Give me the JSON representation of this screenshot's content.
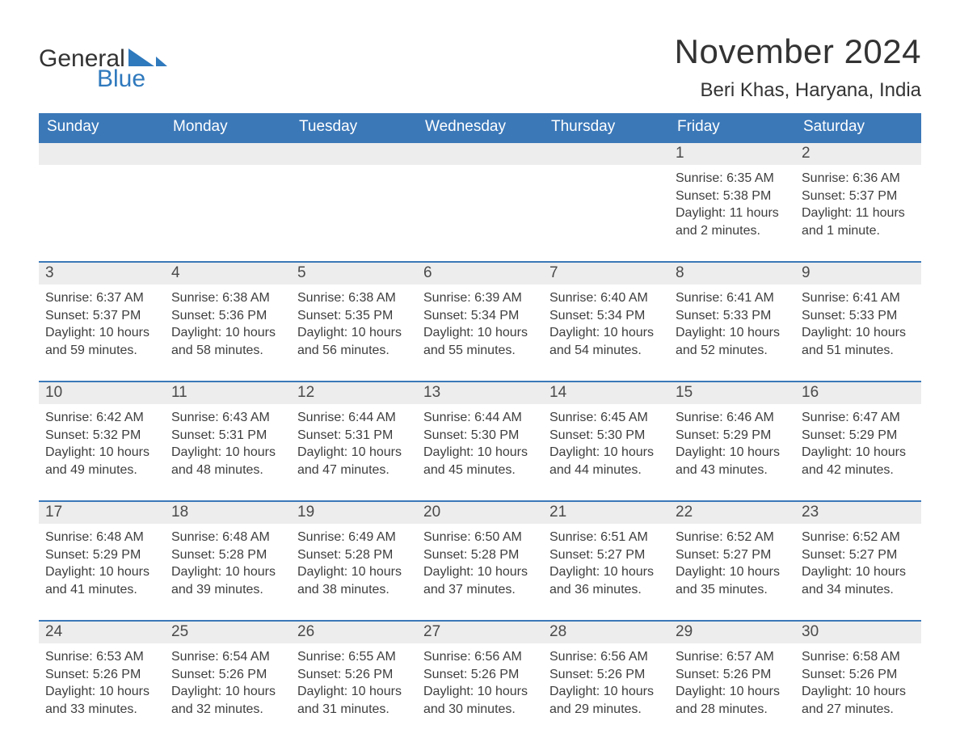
{
  "brand": {
    "word1": "General",
    "word2": "Blue",
    "text_color": "#333333",
    "accent_color": "#2f79bd",
    "sail_color": "#2f79bd"
  },
  "title": {
    "month_year": "November 2024",
    "location": "Beri Khas, Haryana, India",
    "title_fontsize": 42,
    "location_fontsize": 24,
    "title_color": "#333333"
  },
  "calendar": {
    "type": "table",
    "header_bg": "#3b78b8",
    "header_text_color": "#ffffff",
    "day_topline_color": "#3b78b8",
    "day_bar_bg": "#ededed",
    "day_bar_text_color": "#4a4a4a",
    "body_text_color": "#3e3e3e",
    "background_color": "#ffffff",
    "header_fontsize": 19,
    "daynum_fontsize": 19,
    "body_fontsize": 16,
    "columns": [
      "Sunday",
      "Monday",
      "Tuesday",
      "Wednesday",
      "Thursday",
      "Friday",
      "Saturday"
    ],
    "weeks": [
      [
        null,
        null,
        null,
        null,
        null,
        {
          "day": "1",
          "sunrise": "Sunrise: 6:35 AM",
          "sunset": "Sunset: 5:38 PM",
          "daylight": "Daylight: 11 hours and 2 minutes."
        },
        {
          "day": "2",
          "sunrise": "Sunrise: 6:36 AM",
          "sunset": "Sunset: 5:37 PM",
          "daylight": "Daylight: 11 hours and 1 minute."
        }
      ],
      [
        {
          "day": "3",
          "sunrise": "Sunrise: 6:37 AM",
          "sunset": "Sunset: 5:37 PM",
          "daylight": "Daylight: 10 hours and 59 minutes."
        },
        {
          "day": "4",
          "sunrise": "Sunrise: 6:38 AM",
          "sunset": "Sunset: 5:36 PM",
          "daylight": "Daylight: 10 hours and 58 minutes."
        },
        {
          "day": "5",
          "sunrise": "Sunrise: 6:38 AM",
          "sunset": "Sunset: 5:35 PM",
          "daylight": "Daylight: 10 hours and 56 minutes."
        },
        {
          "day": "6",
          "sunrise": "Sunrise: 6:39 AM",
          "sunset": "Sunset: 5:34 PM",
          "daylight": "Daylight: 10 hours and 55 minutes."
        },
        {
          "day": "7",
          "sunrise": "Sunrise: 6:40 AM",
          "sunset": "Sunset: 5:34 PM",
          "daylight": "Daylight: 10 hours and 54 minutes."
        },
        {
          "day": "8",
          "sunrise": "Sunrise: 6:41 AM",
          "sunset": "Sunset: 5:33 PM",
          "daylight": "Daylight: 10 hours and 52 minutes."
        },
        {
          "day": "9",
          "sunrise": "Sunrise: 6:41 AM",
          "sunset": "Sunset: 5:33 PM",
          "daylight": "Daylight: 10 hours and 51 minutes."
        }
      ],
      [
        {
          "day": "10",
          "sunrise": "Sunrise: 6:42 AM",
          "sunset": "Sunset: 5:32 PM",
          "daylight": "Daylight: 10 hours and 49 minutes."
        },
        {
          "day": "11",
          "sunrise": "Sunrise: 6:43 AM",
          "sunset": "Sunset: 5:31 PM",
          "daylight": "Daylight: 10 hours and 48 minutes."
        },
        {
          "day": "12",
          "sunrise": "Sunrise: 6:44 AM",
          "sunset": "Sunset: 5:31 PM",
          "daylight": "Daylight: 10 hours and 47 minutes."
        },
        {
          "day": "13",
          "sunrise": "Sunrise: 6:44 AM",
          "sunset": "Sunset: 5:30 PM",
          "daylight": "Daylight: 10 hours and 45 minutes."
        },
        {
          "day": "14",
          "sunrise": "Sunrise: 6:45 AM",
          "sunset": "Sunset: 5:30 PM",
          "daylight": "Daylight: 10 hours and 44 minutes."
        },
        {
          "day": "15",
          "sunrise": "Sunrise: 6:46 AM",
          "sunset": "Sunset: 5:29 PM",
          "daylight": "Daylight: 10 hours and 43 minutes."
        },
        {
          "day": "16",
          "sunrise": "Sunrise: 6:47 AM",
          "sunset": "Sunset: 5:29 PM",
          "daylight": "Daylight: 10 hours and 42 minutes."
        }
      ],
      [
        {
          "day": "17",
          "sunrise": "Sunrise: 6:48 AM",
          "sunset": "Sunset: 5:29 PM",
          "daylight": "Daylight: 10 hours and 41 minutes."
        },
        {
          "day": "18",
          "sunrise": "Sunrise: 6:48 AM",
          "sunset": "Sunset: 5:28 PM",
          "daylight": "Daylight: 10 hours and 39 minutes."
        },
        {
          "day": "19",
          "sunrise": "Sunrise: 6:49 AM",
          "sunset": "Sunset: 5:28 PM",
          "daylight": "Daylight: 10 hours and 38 minutes."
        },
        {
          "day": "20",
          "sunrise": "Sunrise: 6:50 AM",
          "sunset": "Sunset: 5:28 PM",
          "daylight": "Daylight: 10 hours and 37 minutes."
        },
        {
          "day": "21",
          "sunrise": "Sunrise: 6:51 AM",
          "sunset": "Sunset: 5:27 PM",
          "daylight": "Daylight: 10 hours and 36 minutes."
        },
        {
          "day": "22",
          "sunrise": "Sunrise: 6:52 AM",
          "sunset": "Sunset: 5:27 PM",
          "daylight": "Daylight: 10 hours and 35 minutes."
        },
        {
          "day": "23",
          "sunrise": "Sunrise: 6:52 AM",
          "sunset": "Sunset: 5:27 PM",
          "daylight": "Daylight: 10 hours and 34 minutes."
        }
      ],
      [
        {
          "day": "24",
          "sunrise": "Sunrise: 6:53 AM",
          "sunset": "Sunset: 5:26 PM",
          "daylight": "Daylight: 10 hours and 33 minutes."
        },
        {
          "day": "25",
          "sunrise": "Sunrise: 6:54 AM",
          "sunset": "Sunset: 5:26 PM",
          "daylight": "Daylight: 10 hours and 32 minutes."
        },
        {
          "day": "26",
          "sunrise": "Sunrise: 6:55 AM",
          "sunset": "Sunset: 5:26 PM",
          "daylight": "Daylight: 10 hours and 31 minutes."
        },
        {
          "day": "27",
          "sunrise": "Sunrise: 6:56 AM",
          "sunset": "Sunset: 5:26 PM",
          "daylight": "Daylight: 10 hours and 30 minutes."
        },
        {
          "day": "28",
          "sunrise": "Sunrise: 6:56 AM",
          "sunset": "Sunset: 5:26 PM",
          "daylight": "Daylight: 10 hours and 29 minutes."
        },
        {
          "day": "29",
          "sunrise": "Sunrise: 6:57 AM",
          "sunset": "Sunset: 5:26 PM",
          "daylight": "Daylight: 10 hours and 28 minutes."
        },
        {
          "day": "30",
          "sunrise": "Sunrise: 6:58 AM",
          "sunset": "Sunset: 5:26 PM",
          "daylight": "Daylight: 10 hours and 27 minutes."
        }
      ]
    ]
  }
}
